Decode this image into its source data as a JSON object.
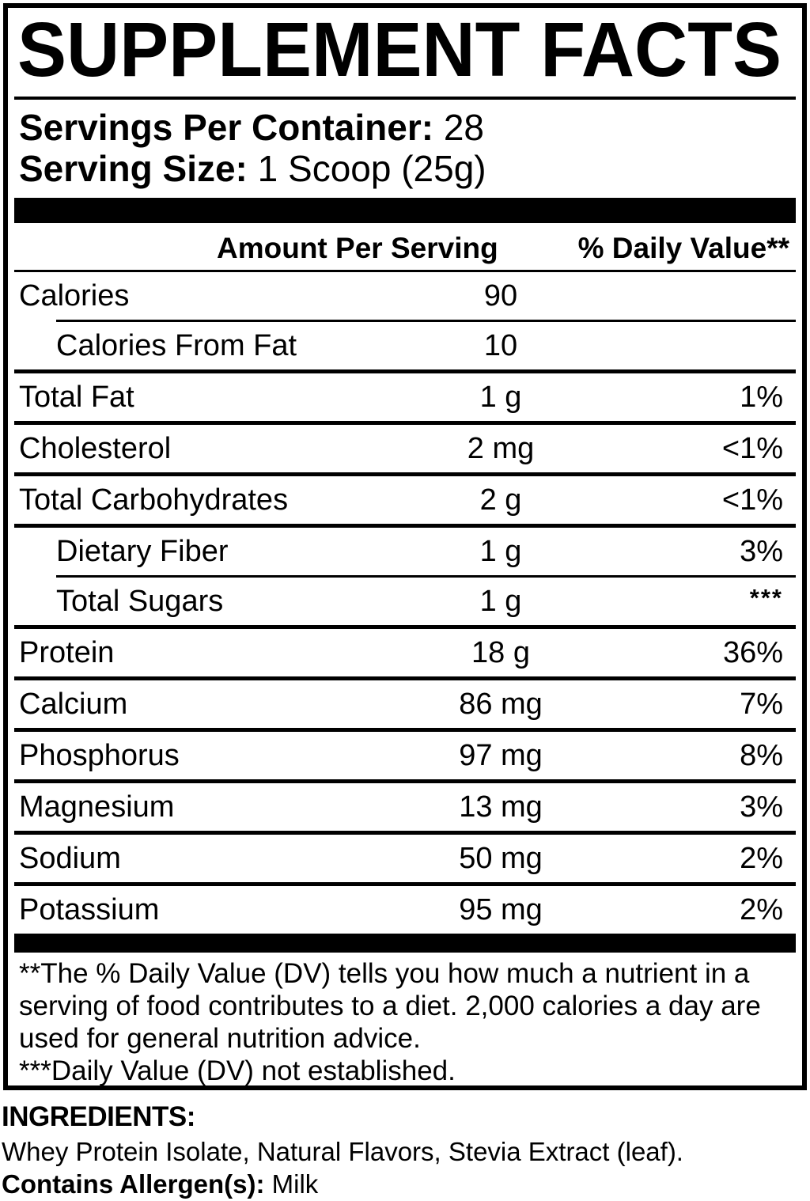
{
  "panel": {
    "title": "SUPPLEMENT FACTS",
    "servings_label": "Servings Per Container:",
    "servings_value": "28",
    "serving_size_label": "Serving Size:",
    "serving_size_value": "1 Scoop (25g)"
  },
  "table": {
    "amount_header": "Amount Per Serving",
    "dv_header": "% Daily Value**",
    "rows": [
      {
        "label": "Calories",
        "amount": "90",
        "dv": "",
        "indent": false,
        "rule": "thin"
      },
      {
        "label": "Calories From Fat",
        "amount": "10",
        "dv": "",
        "indent": true,
        "rule": "thick"
      },
      {
        "label": "Total Fat",
        "amount": "1 g",
        "dv": "1%",
        "indent": false,
        "rule": "thick"
      },
      {
        "label": "Cholesterol",
        "amount": "2 mg",
        "dv": "<1%",
        "indent": false,
        "rule": "thick"
      },
      {
        "label": "Total Carbohydrates",
        "amount": "2 g",
        "dv": "<1%",
        "indent": false,
        "rule": "thick"
      },
      {
        "label": "Dietary Fiber",
        "amount": "1 g",
        "dv": "3%",
        "indent": true,
        "rule": "thin"
      },
      {
        "label": "Total Sugars",
        "amount": "1 g",
        "dv": "***",
        "indent": true,
        "dv_raised": true,
        "rule": "thick"
      },
      {
        "label": "Protein",
        "amount": "18 g",
        "dv": "36%",
        "indent": false,
        "rule": "thick"
      },
      {
        "label": "Calcium",
        "amount": "86 mg",
        "dv": "7%",
        "indent": false,
        "rule": "thick"
      },
      {
        "label": "Phosphorus",
        "amount": "97 mg",
        "dv": "8%",
        "indent": false,
        "rule": "thick"
      },
      {
        "label": "Magnesium",
        "amount": "13 mg",
        "dv": "3%",
        "indent": false,
        "rule": "thick"
      },
      {
        "label": "Sodium",
        "amount": "50 mg",
        "dv": "2%",
        "indent": false,
        "rule": "thick"
      },
      {
        "label": "Potassium",
        "amount": "95 mg",
        "dv": "2%",
        "indent": false,
        "rule": "none"
      }
    ]
  },
  "footnotes": {
    "daily_value_note": "**The % Daily Value (DV) tells you how much a nutrient in a serving of food contributes to a diet. 2,000 calories a day are used for general nutrition advice.",
    "not_established_note": "***Daily Value (DV) not established."
  },
  "ingredients": {
    "heading": "INGREDIENTS:",
    "list": "Whey Protein Isolate, Natural Flavors, Stevia Extract (leaf).",
    "allergen_label": "Contains Allergen(s):",
    "allergen_value": "Milk"
  },
  "colors": {
    "ink": "#000000",
    "paper": "#ffffff"
  }
}
